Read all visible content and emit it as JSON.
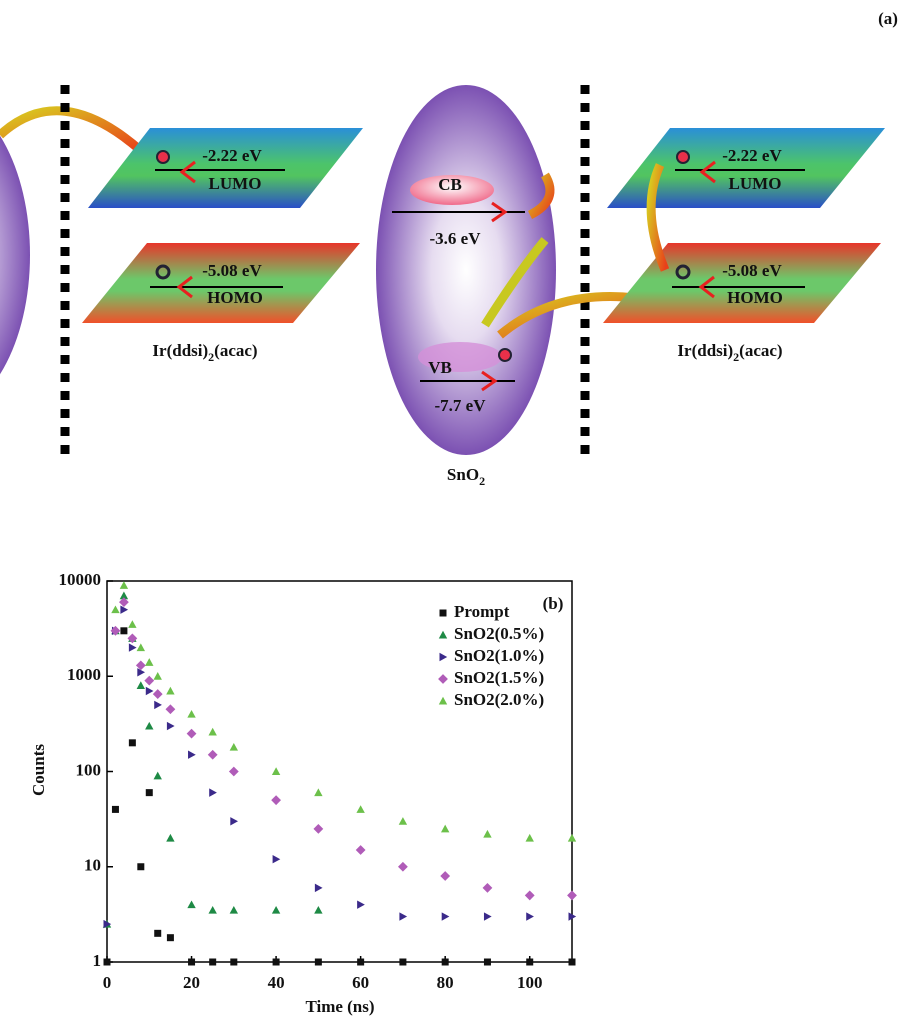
{
  "diagram": {
    "panel_label": "(a)",
    "left": {
      "lumo_energy": "-2.22 eV",
      "lumo": "LUMO",
      "homo_energy": "-5.08 eV",
      "homo": "HOMO",
      "label": [
        "Ir(ddsi)",
        "2",
        "(acac)"
      ]
    },
    "center": {
      "cb": "CB",
      "cb_energy": "-3.6 eV",
      "vb": "VB",
      "vb_energy": "-7.7 eV",
      "label": [
        "SnO",
        "2"
      ]
    },
    "right": {
      "lumo_energy": "-2.22 eV",
      "lumo": "LUMO",
      "homo_energy": "-5.08 eV",
      "homo": "HOMO",
      "label": [
        "Ir(ddsi)",
        "2",
        "(acac)"
      ]
    }
  },
  "chart_data": {
    "type": "scatter",
    "annotation": "(b)",
    "x_label": "Time (ns)",
    "y_label": "Counts",
    "x": [
      0,
      2,
      4,
      6,
      8,
      10,
      12,
      15,
      20,
      25,
      30,
      40,
      50,
      60,
      70,
      80,
      90,
      100,
      110
    ],
    "series": [
      {
        "name": "Prompt",
        "color": "#111111",
        "marker": "square",
        "values": [
          1,
          40,
          3000,
          200,
          10,
          60,
          2,
          1.8,
          1,
          1,
          1,
          1,
          1,
          1,
          1,
          1,
          1,
          1,
          1
        ]
      },
      {
        "name": "SnO2(0.5%)",
        "color": "#1e8a45",
        "marker": "triangle-up",
        "values": [
          2.5,
          3000,
          7000,
          2500,
          800,
          300,
          90,
          20,
          4,
          3.5,
          3.5,
          3.5,
          3.5,
          null,
          null,
          null,
          null,
          null,
          null
        ]
      },
      {
        "name": "SnO2(1.0%)",
        "color": "#3b2a8a",
        "marker": "triangle-right",
        "values": [
          2.5,
          3000,
          5000,
          2000,
          1100,
          700,
          500,
          300,
          150,
          60,
          30,
          12,
          6,
          4,
          3,
          3,
          3,
          3,
          3
        ]
      },
      {
        "name": "SnO2(1.5%)",
        "color": "#b05cb8",
        "marker": "diamond",
        "values": [
          null,
          3000,
          6000,
          2500,
          1300,
          900,
          650,
          450,
          250,
          150,
          100,
          50,
          25,
          15,
          10,
          8,
          6,
          5,
          5
        ]
      },
      {
        "name": "SnO2(2.0%)",
        "color": "#6cc04a",
        "marker": "triangle-up",
        "values": [
          null,
          5000,
          9000,
          3500,
          2000,
          1400,
          1000,
          700,
          400,
          260,
          180,
          100,
          60,
          40,
          30,
          25,
          22,
          20,
          20
        ]
      }
    ],
    "xlim": [
      0,
      110
    ],
    "xticks": [
      0,
      20,
      40,
      60,
      80,
      100
    ],
    "ylim": [
      1,
      10000
    ],
    "yticks": [
      1,
      10,
      100,
      1000,
      10000
    ],
    "yscale": "log",
    "legend": "upper right"
  }
}
